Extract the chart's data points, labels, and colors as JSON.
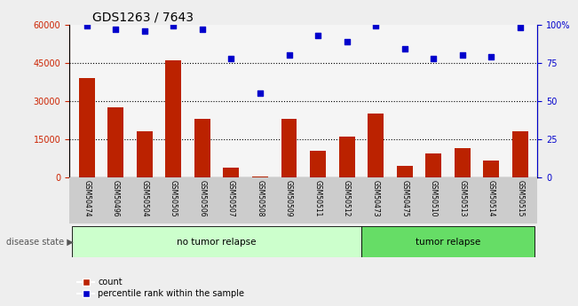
{
  "title": "GDS1263 / 7643",
  "categories": [
    "GSM50474",
    "GSM50496",
    "GSM50504",
    "GSM50505",
    "GSM50506",
    "GSM50507",
    "GSM50508",
    "GSM50509",
    "GSM50511",
    "GSM50512",
    "GSM50473",
    "GSM50475",
    "GSM50510",
    "GSM50513",
    "GSM50514",
    "GSM50515"
  ],
  "counts": [
    39000,
    27500,
    18000,
    46000,
    23000,
    4000,
    500,
    23000,
    10500,
    16000,
    25000,
    4500,
    9500,
    11500,
    6500,
    18000
  ],
  "percentiles": [
    99,
    97,
    96,
    99,
    97,
    78,
    55,
    80,
    93,
    89,
    99,
    84,
    78,
    80,
    79,
    98
  ],
  "no_tumor_count": 10,
  "tumor_count": 6,
  "bar_color": "#bb2200",
  "dot_color": "#0000cc",
  "left_axis_color": "#cc2200",
  "right_axis_color": "#0000cc",
  "ylim_left": [
    0,
    60000
  ],
  "ylim_right": [
    0,
    100
  ],
  "yticks_left": [
    0,
    15000,
    30000,
    45000,
    60000
  ],
  "yticks_right": [
    0,
    25,
    50,
    75,
    100
  ],
  "no_tumor_label": "no tumor relapse",
  "tumor_label": "tumor relapse",
  "disease_state_label": "disease state",
  "legend_count": "count",
  "legend_percentile": "percentile rank within the sample",
  "fig_bg": "#eeeeee",
  "plot_bg": "#f5f5f5",
  "label_bg": "#cccccc",
  "group_bg_no_tumor": "#ccffcc",
  "group_bg_tumor": "#66dd66",
  "title_fontsize": 10,
  "tick_fontsize": 7,
  "bar_width": 0.55
}
